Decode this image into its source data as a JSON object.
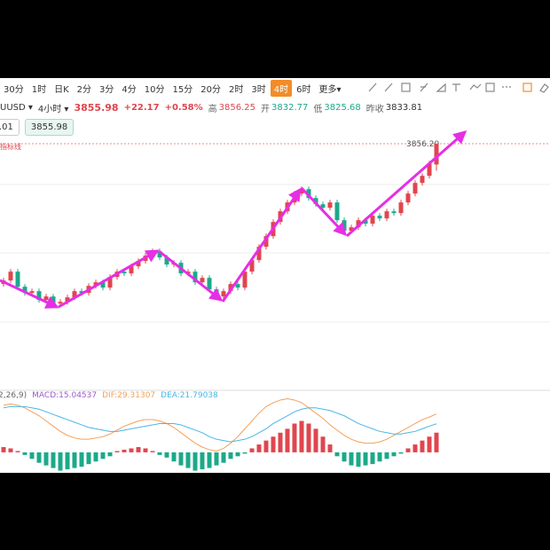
{
  "toolbar": {
    "items": [
      "30分",
      "1时",
      "日K",
      "2分",
      "3分",
      "4分",
      "10分",
      "15分",
      "20分",
      "2时",
      "3时",
      "4时",
      "6时",
      "更多▾"
    ],
    "selected": 11
  },
  "header": {
    "symbol": "UUSD ▾",
    "period": "4小时 ▾",
    "price": "3855.98",
    "change": "+22.17",
    "change_pct": "+0.58%",
    "stats": [
      {
        "label": "高",
        "value": "3856.25",
        "color": "#e0454e"
      },
      {
        "label": "开",
        "value": "3832.77",
        "color": "#1ba98a"
      },
      {
        "label": "低",
        "value": "3825.68",
        "color": "#1ba98a"
      },
      {
        "label": "昨收",
        "value": "3833.81",
        "color": "#333333"
      }
    ]
  },
  "boxes": [
    ".01",
    "3855.98"
  ],
  "indicator_note": "指标线",
  "macd_legend": [
    "2,26,9)",
    "MACD:15.04537",
    "DIF:29.31307",
    "DEA:21.79038"
  ],
  "chart_data": [
    {
      "type": "candlestick",
      "up_color": "#e0454e",
      "down_color": "#1ba98a",
      "ylim": [
        3588.2,
        3868.2
      ],
      "price_line": {
        "value": 3856.2,
        "label": "3856.20",
        "color": "#f08a8a"
      },
      "open": [
        3698,
        3702,
        3712,
        3695,
        3688,
        3690,
        3680,
        3684,
        3676,
        3678,
        3683,
        3690,
        3688,
        3696,
        3700,
        3694,
        3706,
        3712,
        3710,
        3718,
        3724,
        3730,
        3735,
        3728,
        3720,
        3722,
        3710,
        3712,
        3700,
        3705,
        3692,
        3684,
        3690,
        3698,
        3694,
        3712,
        3725,
        3740,
        3752,
        3768,
        3780,
        3790,
        3800,
        3805,
        3795,
        3788,
        3784,
        3790,
        3770,
        3758,
        3762,
        3770,
        3766,
        3775,
        3772,
        3780,
        3778,
        3790,
        3800,
        3812,
        3820,
        3832.77
      ],
      "high": [
        3705,
        3715,
        3715,
        3698,
        3693,
        3693,
        3687,
        3687,
        3681,
        3686,
        3693,
        3693,
        3699,
        3703,
        3703,
        3709,
        3715,
        3715,
        3721,
        3727,
        3733,
        3738,
        3738,
        3731,
        3725,
        3725,
        3715,
        3715,
        3708,
        3708,
        3695,
        3693,
        3701,
        3701,
        3715,
        3728,
        3743,
        3755,
        3771,
        3783,
        3793,
        3803,
        3808,
        3808,
        3798,
        3791,
        3793,
        3793,
        3773,
        3765,
        3773,
        3773,
        3778,
        3778,
        3783,
        3783,
        3793,
        3803,
        3815,
        3823,
        3837,
        3856.25
      ],
      "low": [
        3695,
        3699,
        3692,
        3685,
        3685,
        3677,
        3677,
        3673,
        3673,
        3675,
        3680,
        3685,
        3685,
        3693,
        3691,
        3691,
        3703,
        3707,
        3707,
        3715,
        3721,
        3727,
        3725,
        3717,
        3717,
        3707,
        3707,
        3697,
        3697,
        3689,
        3681,
        3681,
        3687,
        3691,
        3691,
        3709,
        3722,
        3737,
        3749,
        3765,
        3777,
        3787,
        3797,
        3792,
        3785,
        3781,
        3781,
        3767,
        3755,
        3755,
        3759,
        3763,
        3763,
        3769,
        3769,
        3775,
        3775,
        3787,
        3797,
        3809,
        3817,
        3825.68
      ],
      "close": [
        3702,
        3712,
        3695,
        3688,
        3690,
        3680,
        3684,
        3676,
        3678,
        3683,
        3690,
        3688,
        3696,
        3700,
        3694,
        3706,
        3712,
        3710,
        3718,
        3724,
        3730,
        3735,
        3728,
        3720,
        3722,
        3710,
        3712,
        3700,
        3705,
        3692,
        3684,
        3690,
        3698,
        3694,
        3712,
        3725,
        3740,
        3752,
        3768,
        3780,
        3790,
        3800,
        3805,
        3795,
        3788,
        3784,
        3790,
        3770,
        3758,
        3762,
        3770,
        3766,
        3775,
        3772,
        3780,
        3778,
        3790,
        3800,
        3812,
        3820,
        3833.81,
        3855.98
      ]
    },
    {
      "type": "macd",
      "ylim": [
        -15,
        42
      ],
      "up_color": "#e0454e",
      "down_color": "#1ba98a",
      "histogram": [
        4,
        3,
        1,
        -2,
        -5,
        -8,
        -10,
        -12,
        -14,
        -13,
        -12,
        -11,
        -9,
        -7,
        -5,
        -3,
        1,
        2,
        3,
        4,
        3,
        1,
        -2,
        -4,
        -7,
        -10,
        -12,
        -14,
        -13,
        -12,
        -10,
        -8,
        -5,
        -3,
        -1,
        3,
        6,
        9,
        12,
        15,
        18,
        22,
        24,
        22,
        18,
        12,
        6,
        -3,
        -7,
        -10,
        -11,
        -10,
        -9,
        -7,
        -5,
        -3,
        -1,
        3,
        6,
        9,
        12,
        15.04537
      ],
      "series": [
        {
          "color": "#f5a05a",
          "values": [
            36,
            37,
            36,
            34,
            31,
            28,
            24,
            20,
            16,
            13,
            11,
            10,
            10,
            11,
            12,
            14,
            17,
            20,
            22,
            24,
            25,
            25,
            24,
            22,
            19,
            15,
            11,
            7,
            4,
            2,
            1,
            3,
            7,
            12,
            18,
            24,
            30,
            35,
            38,
            40,
            41,
            40,
            38,
            34,
            30,
            26,
            21,
            17,
            13,
            10,
            8,
            7,
            7,
            8,
            10,
            13,
            16,
            19,
            22,
            25,
            27,
            29.31307
          ]
        },
        {
          "color": "#4ab6e8",
          "values": [
            34,
            35,
            35,
            35,
            34,
            33,
            31,
            29,
            27,
            25,
            23,
            21,
            19,
            18,
            17,
            16,
            16,
            17,
            18,
            19,
            20,
            21,
            22,
            22,
            22,
            21,
            19,
            17,
            15,
            12,
            10,
            9,
            8,
            9,
            10,
            12,
            15,
            18,
            22,
            25,
            28,
            31,
            33,
            34,
            34,
            33,
            32,
            30,
            28,
            25,
            22,
            20,
            18,
            16,
            15,
            14,
            14,
            15,
            16,
            18,
            20,
            21.79038
          ]
        }
      ]
    }
  ]
}
